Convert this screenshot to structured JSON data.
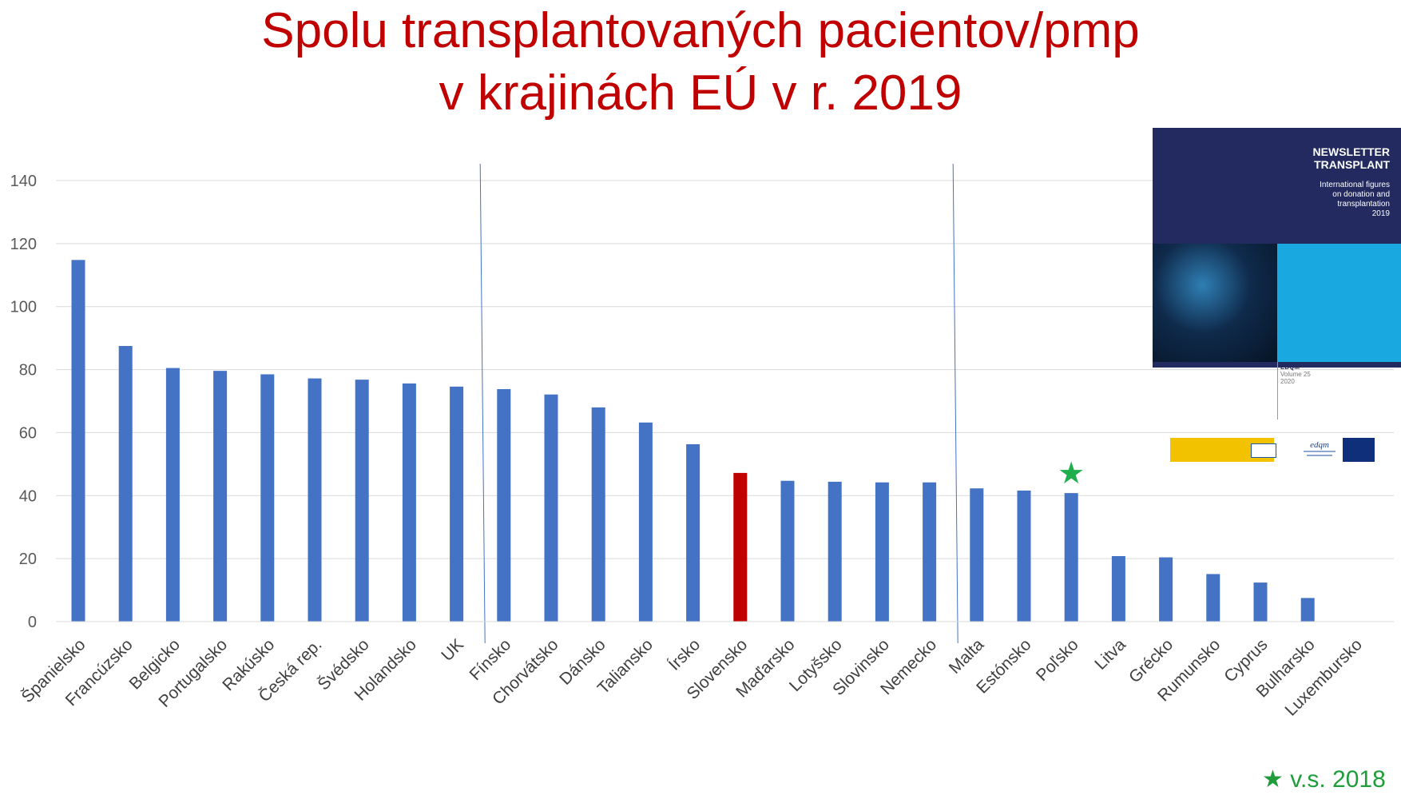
{
  "title_line1": "Spolu transplantovaných pacientov/pmp",
  "title_line2": "v krajinách EÚ v r. 2019",
  "chart_data": {
    "type": "bar",
    "title": "Spolu transplantovaných pacientov/pmp v krajinách EÚ v r. 2019",
    "xlabel": "",
    "ylabel": "",
    "ylim": [
      0,
      145
    ],
    "yticks": [
      0,
      20,
      40,
      60,
      80,
      100,
      120,
      140
    ],
    "grid": true,
    "categories": [
      "Španielsko",
      "Francúzsko",
      "Belgicko",
      "Portugalsko",
      "Rakúsko",
      "Česká rep.",
      "Švédsko",
      "Holandsko",
      "UK",
      "Fínsko",
      "Chorvátsko",
      "Dánsko",
      "Taliansko",
      "Írsko",
      "Slovensko",
      "Maďarsko",
      "Lotyšsko",
      "Slovinsko",
      "Nemecko",
      "Malta",
      "Estónsko",
      "Poľsko",
      "Litva",
      "Grécko",
      "Rumunsko",
      "Cyprus",
      "Bulharsko",
      "Luxembursko"
    ],
    "values": [
      114.8,
      87.5,
      80.5,
      79.6,
      78.5,
      77.2,
      76.8,
      75.6,
      74.6,
      73.8,
      72.1,
      68,
      63.2,
      56.3,
      47.2,
      44.7,
      44.4,
      44.2,
      44.2,
      42.3,
      41.6,
      40.8,
      20.8,
      20.4,
      15.1,
      12.4,
      7.5,
      0
    ],
    "bar_color": "#4472c4",
    "highlight_color": "#c00000",
    "highlight_category": "Slovensko",
    "star_category": "Poľsko",
    "star_color": "#1fae4b",
    "group_dividers_after": [
      "UK",
      "Nemecko"
    ]
  },
  "legend_note": {
    "star": "★",
    "text": "v.s. 2018"
  },
  "newsletter": {
    "title_line1": "NEWSLETTER",
    "title_line2": "TRANSPLANT",
    "subtitle_line1": "International figures",
    "subtitle_line2": "on donation and",
    "subtitle_line3": "transplantation",
    "subtitle_line4": "2019",
    "publisher": "EDQM",
    "volume": "Volume 25",
    "year": "2020"
  }
}
